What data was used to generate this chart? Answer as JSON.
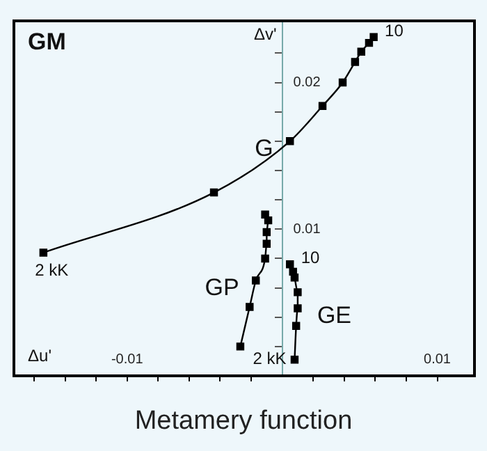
{
  "chart_data": {
    "type": "line",
    "title": "Metamery function",
    "xlabel": "Δu'",
    "ylabel": "Δv'",
    "xlim": [
      -0.0173,
      0.0124
    ],
    "ylim": [
      0,
      0.0242
    ],
    "xticks": [
      {
        "value": -0.016,
        "label": null
      },
      {
        "value": -0.014,
        "label": null
      },
      {
        "value": -0.012,
        "label": null
      },
      -0.01,
      {
        "value": -0.008,
        "label": null
      },
      {
        "value": -0.006,
        "label": null
      },
      {
        "value": -0.004,
        "label": null
      },
      {
        "value": -0.002,
        "label": null
      },
      {
        "value": 0.002,
        "label": null
      },
      {
        "value": 0.004,
        "label": null
      },
      {
        "value": 0.006,
        "label": null
      },
      {
        "value": 0.008,
        "label": null
      },
      0.01
    ],
    "yticks": [
      {
        "value": 0.002,
        "label": null
      },
      {
        "value": 0.004,
        "label": null
      },
      {
        "value": 0.006,
        "label": null
      },
      {
        "value": 0.008,
        "label": null
      },
      0.01,
      {
        "value": 0.012,
        "label": null
      },
      {
        "value": 0.014,
        "label": null
      },
      {
        "value": 0.016,
        "label": null
      },
      {
        "value": 0.018,
        "label": null
      },
      0.02,
      {
        "value": 0.022,
        "label": null
      }
    ],
    "marker": "square",
    "grid": false,
    "legend": false,
    "series": [
      {
        "name": "G",
        "color": "#000000",
        "x": [
          -0.0154,
          -0.0044,
          0.0005,
          0.0026,
          0.0039,
          0.0047,
          0.0051,
          0.0056,
          0.0059
        ],
        "values": [
          0.0084,
          0.0125,
          0.016,
          0.0184,
          0.02,
          0.0214,
          0.0221,
          0.0227,
          0.0231
        ]
      },
      {
        "name": "GP",
        "color": "#000000",
        "x": [
          -0.0027,
          -0.0021,
          -0.0017,
          -0.0011,
          -0.001,
          -0.001,
          -0.0009,
          -0.0011
        ],
        "values": [
          0.002,
          0.0047,
          0.0065,
          0.008,
          0.009,
          0.0098,
          0.0106,
          0.011
        ]
      },
      {
        "name": "GE",
        "color": "#000000",
        "x": [
          0.0008,
          0.0009,
          0.001,
          0.001,
          0.0008,
          0.0007,
          0.0005
        ],
        "values": [
          0.0011,
          0.0034,
          0.0046,
          0.0057,
          0.0067,
          0.0071,
          0.0076
        ]
      }
    ],
    "annotations": [
      "GM",
      {
        "text": "2 kK",
        "x": -0.0154,
        "y": 0.0084
      },
      {
        "text": "2 kK",
        "x": 0.0008,
        "y": 0.0011
      },
      {
        "text": "10",
        "x": 0.0059,
        "y": 0.0231
      },
      {
        "text": "10",
        "x": 0.0005,
        "y": 0.0076
      }
    ]
  }
}
